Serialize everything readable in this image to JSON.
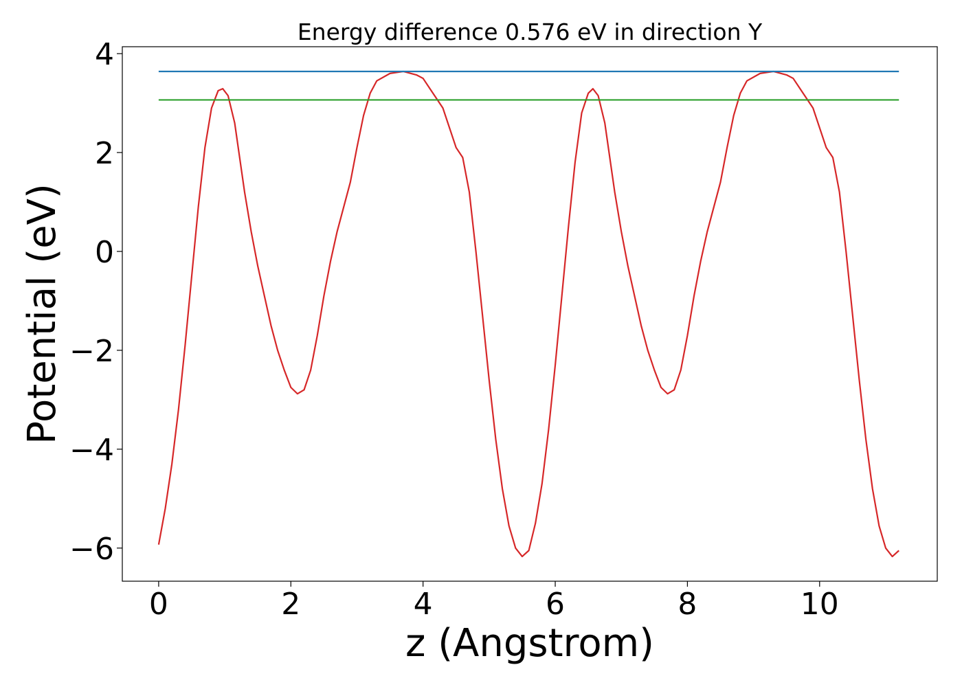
{
  "chart_data": {
    "type": "line",
    "title": "Energy difference 0.576 eV in direction Y",
    "xlabel": "z (Angstrom)",
    "ylabel": "Potential (eV)",
    "xlim": [
      -0.55,
      11.78
    ],
    "ylim": [
      -6.67,
      4.14
    ],
    "xticks": [
      0,
      2,
      4,
      6,
      8,
      10
    ],
    "yticks": [
      {
        "value": -6,
        "label": "−6"
      },
      {
        "value": -4,
        "label": "−4"
      },
      {
        "value": -2,
        "label": "−2"
      },
      0,
      2,
      4
    ],
    "grid": false,
    "series": [
      {
        "color": "#d62728",
        "x": [
          0,
          0.1,
          0.2,
          0.3,
          0.4,
          0.5,
          0.6,
          0.7,
          0.8,
          0.9,
          0.97,
          1.05,
          1.15,
          1.3,
          1.4,
          1.5,
          1.6,
          1.7,
          1.8,
          1.9,
          2.0,
          2.1,
          2.2,
          2.3,
          2.4,
          2.5,
          2.6,
          2.7,
          2.8,
          2.9,
          3.0,
          3.1,
          3.2,
          3.3,
          3.5,
          3.7,
          3.9,
          4.0,
          4.1,
          4.3,
          4.5,
          4.6,
          4.7,
          4.8,
          4.9,
          5.0,
          5.1,
          5.2,
          5.3,
          5.4,
          5.5,
          5.6,
          5.7,
          5.8,
          5.9,
          6.0,
          6.1,
          6.2,
          6.3,
          6.4,
          6.5,
          6.57,
          6.65,
          6.75,
          6.9,
          7.0,
          7.1,
          7.2,
          7.3,
          7.4,
          7.5,
          7.6,
          7.7,
          7.8,
          7.9,
          8.0,
          8.1,
          8.2,
          8.3,
          8.4,
          8.5,
          8.6,
          8.7,
          8.8,
          8.9,
          9.1,
          9.3,
          9.5,
          9.6,
          9.7,
          9.9,
          10.1,
          10.2,
          10.3,
          10.4,
          10.5,
          10.6,
          10.7,
          10.8,
          10.9,
          11.0,
          11.1,
          11.2
        ],
        "values": [
          -5.93,
          -5.2,
          -4.3,
          -3.2,
          -1.9,
          -0.5,
          0.9,
          2.1,
          2.9,
          3.25,
          3.29,
          3.15,
          2.6,
          1.2,
          0.4,
          -0.3,
          -0.9,
          -1.5,
          -2.0,
          -2.4,
          -2.75,
          -2.88,
          -2.8,
          -2.4,
          -1.7,
          -0.9,
          -0.2,
          0.4,
          0.9,
          1.4,
          2.1,
          2.75,
          3.2,
          3.45,
          3.6,
          3.64,
          3.57,
          3.5,
          3.3,
          2.9,
          2.1,
          1.9,
          1.2,
          0.0,
          -1.3,
          -2.6,
          -3.8,
          -4.8,
          -5.55,
          -6.0,
          -6.17,
          -6.05,
          -5.5,
          -4.7,
          -3.6,
          -2.3,
          -0.9,
          0.5,
          1.8,
          2.8,
          3.2,
          3.29,
          3.15,
          2.6,
          1.2,
          0.4,
          -0.3,
          -0.9,
          -1.5,
          -2.0,
          -2.4,
          -2.75,
          -2.88,
          -2.8,
          -2.4,
          -1.7,
          -0.9,
          -0.2,
          0.4,
          0.9,
          1.4,
          2.1,
          2.75,
          3.2,
          3.45,
          3.6,
          3.64,
          3.57,
          3.5,
          3.3,
          2.9,
          2.1,
          1.9,
          1.2,
          0.0,
          -1.3,
          -2.6,
          -3.8,
          -4.8,
          -5.55,
          -6.0,
          -6.17,
          -6.05
        ]
      },
      {
        "color": "#1f77b4",
        "x": [
          0,
          11.2
        ],
        "values": [
          3.64,
          3.64
        ]
      },
      {
        "color": "#2ca02c",
        "x": [
          0,
          11.2
        ],
        "values": [
          3.064,
          3.064
        ]
      }
    ]
  }
}
